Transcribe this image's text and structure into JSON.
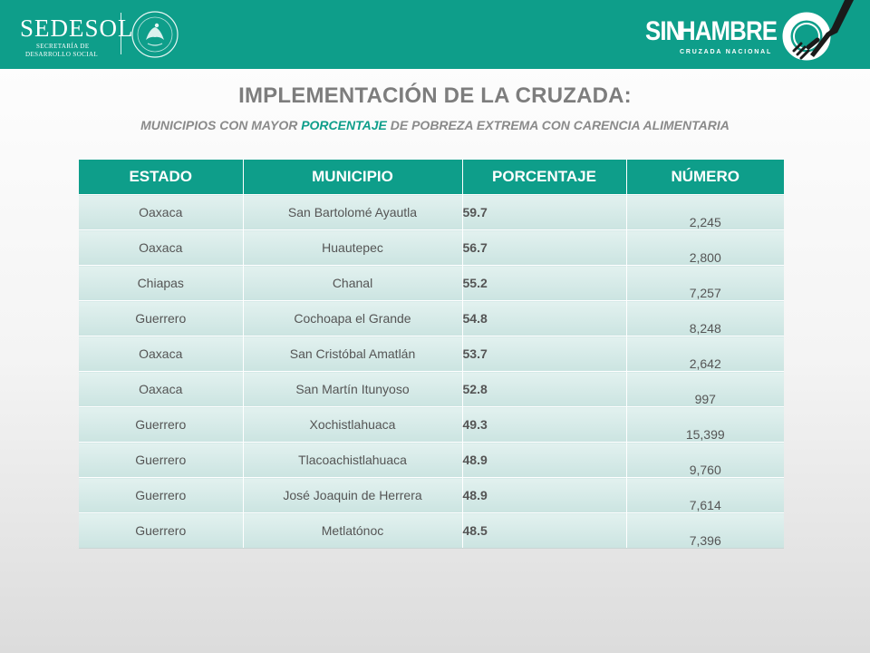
{
  "header": {
    "left_logo": {
      "brand": "SEDESOL",
      "sub_line1": "SECRETARÍA DE",
      "sub_line2": "DESARROLLO SOCIAL"
    },
    "right_logo": {
      "word1": "SIN",
      "word2": "HAMBRE",
      "sub": "CRUZADA NACIONAL"
    }
  },
  "title": "IMPLEMENTACIÓN DE LA CRUZADA:",
  "subtitle": {
    "before": "MUNICIPIOS CON MAYOR ",
    "highlight": "PORCENTAJE",
    "after": " DE POBREZA EXTREMA CON CARENCIA ALIMENTARIA"
  },
  "table": {
    "headers": [
      "ESTADO",
      "MUNICIPIO",
      "PORCENTAJE",
      "NÚMERO"
    ],
    "rows": [
      [
        "Oaxaca",
        "San Bartolomé Ayautla",
        "59.7",
        "2,245"
      ],
      [
        "Oaxaca",
        "Huautepec",
        "56.7",
        "2,800"
      ],
      [
        "Chiapas",
        "Chanal",
        "55.2",
        "7,257"
      ],
      [
        "Guerrero",
        "Cochoapa el Grande",
        "54.8",
        "8,248"
      ],
      [
        "Oaxaca",
        "San Cristóbal Amatlán",
        "53.7",
        "2,642"
      ],
      [
        "Oaxaca",
        "San Martín Itunyoso",
        "52.8",
        "997"
      ],
      [
        "Guerrero",
        "Xochistlahuaca",
        "49.3",
        "15,399"
      ],
      [
        "Guerrero",
        "Tlacoachistlahuaca",
        "48.9",
        "9,760"
      ],
      [
        "Guerrero",
        "José Joaquin de Herrera",
        "48.9",
        "7,614"
      ],
      [
        "Guerrero",
        "Metlatónoc",
        "48.5",
        "7,396"
      ]
    ]
  },
  "colors": {
    "accent": "#0e9e8a",
    "title_gray": "#7d7d7d",
    "cell_bg": "#d6ebe8"
  },
  "icons": {
    "seal": "mexican-coat-of-arms-seal-icon",
    "plate": "plate-fork-knife-icon"
  }
}
